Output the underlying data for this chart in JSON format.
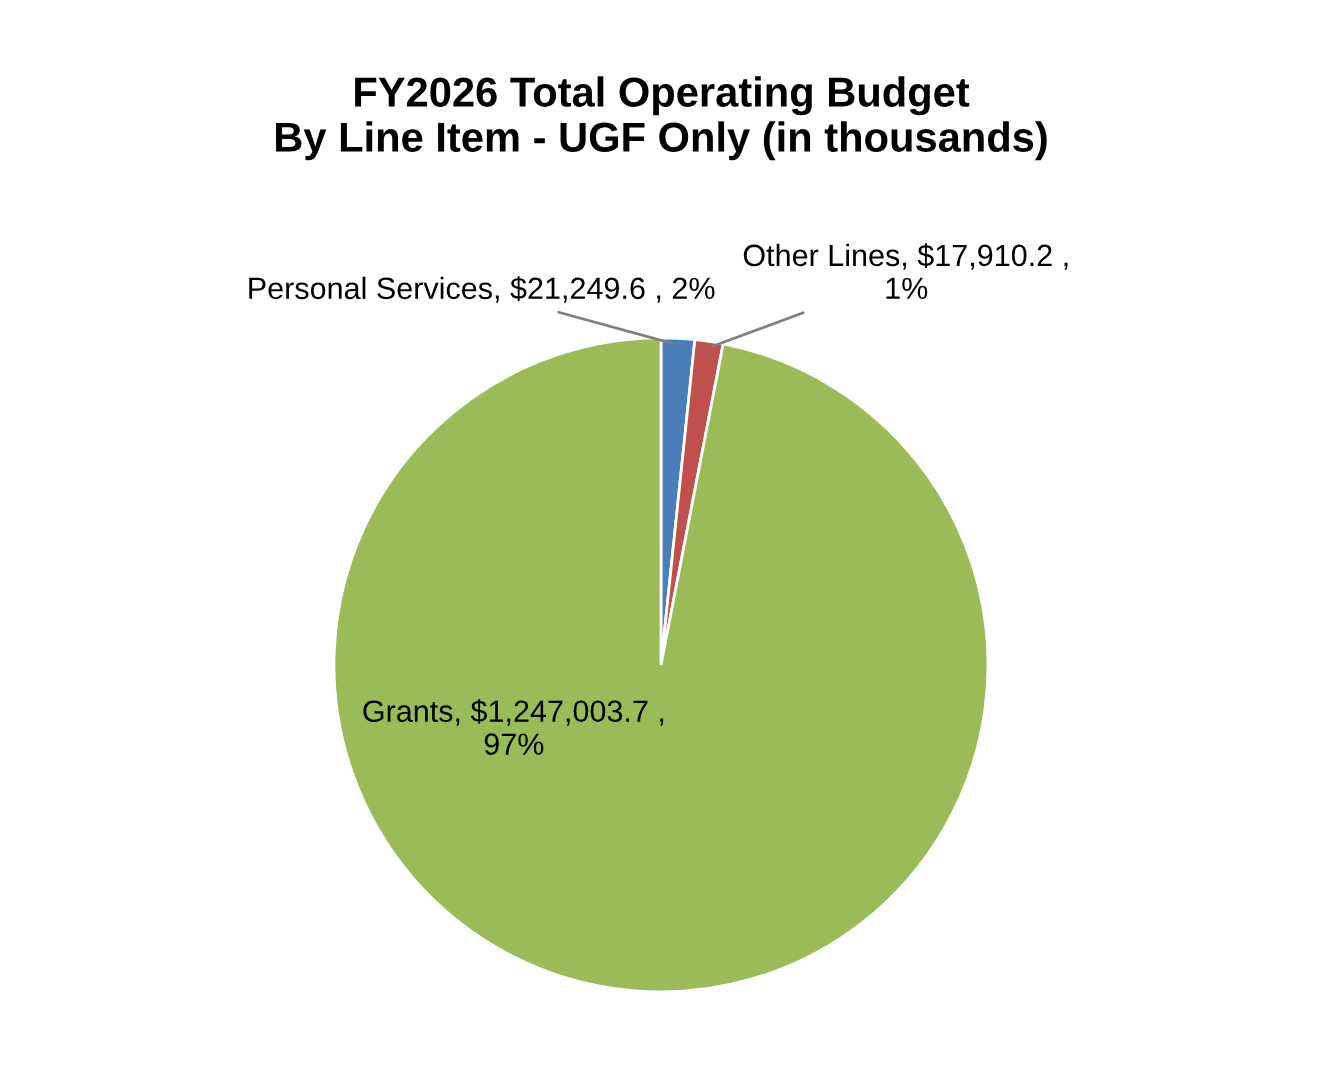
{
  "chart_data": {
    "type": "pie",
    "title": "FY2026 Total Operating Budget\nBy Line Item - UGF Only (in thousands)",
    "categories": [
      "Personal Services",
      "Other Lines",
      "Grants"
    ],
    "values": [
      21249.6,
      17910.2,
      1247003.7
    ],
    "colors": [
      "#4a7ebb",
      "#c0504d",
      "#9bbb59"
    ],
    "value_labels": [
      "$21,249.6 , 2%",
      "$17,910.2 ,\n1%",
      "$1,247,003.7 ,\n97%"
    ],
    "legend": false
  }
}
